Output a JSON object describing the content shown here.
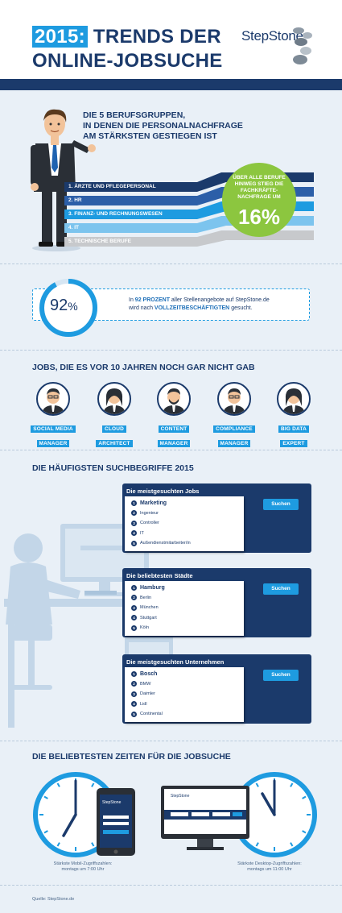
{
  "header": {
    "year": "2015:",
    "title_line1": "TRENDS DER",
    "title_line2": "ONLINE-JOBSUCHE",
    "logo": "StepStone"
  },
  "professions": {
    "title_lines": [
      "DIE 5 BERUFSGRUPPEN,",
      "IN DENEN DIE PERSONALNACHFRAGE",
      "AM STÄRKSTEN GESTIEGEN IST"
    ],
    "items": [
      {
        "label": "1. ÄRZTE UND PFLEGEPERSONAL",
        "color": "#1b3a6b"
      },
      {
        "label": "2. HR",
        "color": "#2c5fa8"
      },
      {
        "label": "3. FINANZ- UND RECHNUNGSWESEN",
        "color": "#1e9be0"
      },
      {
        "label": "4. IT",
        "color": "#7cc4ee"
      },
      {
        "label": "5. TECHNISCHE BERUFE",
        "color": "#c7c9cc"
      }
    ],
    "circle_lines": [
      "ÜBER ALLE BERUFE",
      "HINWEG STIEG DIE",
      "FACHKRÄFTE-",
      "NACHFRAGE UM"
    ],
    "circle_value": "16%"
  },
  "fulltime": {
    "percent": 92,
    "value_label": "92",
    "percent_sign": "%",
    "text_a": "In ",
    "text_b": "92 PROZENT",
    "text_c": " aller Stellenangebote auf StepStone.de",
    "text_d": "wird nach ",
    "text_e": "VOLLZEITBESCHÄFTIGTEN",
    "text_f": " gesucht."
  },
  "new_jobs": {
    "title": "JOBS, DIE ES VOR 10 JAHREN NOCH GAR NICHT GAB",
    "items": [
      {
        "line1": "SOCIAL MEDIA",
        "line2": "MANAGER"
      },
      {
        "line1": "CLOUD",
        "line2": "ARCHITECT"
      },
      {
        "line1": "CONTENT",
        "line2": "MANAGER"
      },
      {
        "line1": "COMPLIANCE",
        "line2": "MANAGER"
      },
      {
        "line1": "BIG DATA",
        "line2": "EXPERT"
      }
    ]
  },
  "search": {
    "title": "DIE HÄUFIGSTEN SUCHBEGRIFFE 2015",
    "button_label": "Suchen",
    "panels": [
      {
        "title": "Die meistgesuchten Jobs",
        "items": [
          "Marketing",
          "Ingenieur",
          "Controller",
          "IT",
          "Außendienstmitarbeiter/in"
        ]
      },
      {
        "title": "Die beliebtesten Städte",
        "items": [
          "Hamburg",
          "Berlin",
          "München",
          "Stuttgart",
          "Köln"
        ]
      },
      {
        "title": "Die meistgesuchten Unternehmen",
        "items": [
          "Bosch",
          "BMW",
          "Daimler",
          "Lidl",
          "Continental"
        ]
      }
    ]
  },
  "times": {
    "title": "DIE BELIEBTESTEN ZEITEN FÜR DIE JOBSUCHE",
    "mobile_caption": [
      "Stärkste Mobil-Zugriffszahlen:",
      "montags um 7:00 Uhr"
    ],
    "desktop_caption": [
      "Stärkste Desktop-Zugriffszahlen:",
      "montags um 11:00 Uhr"
    ],
    "mobile_hour": 7,
    "desktop_hour": 11,
    "screen_logo": "StepStone"
  },
  "source": "Quelle: StepStone.de",
  "colors": {
    "navy": "#1b3a6b",
    "blue": "#1e9be0",
    "green": "#8cc63f"
  }
}
